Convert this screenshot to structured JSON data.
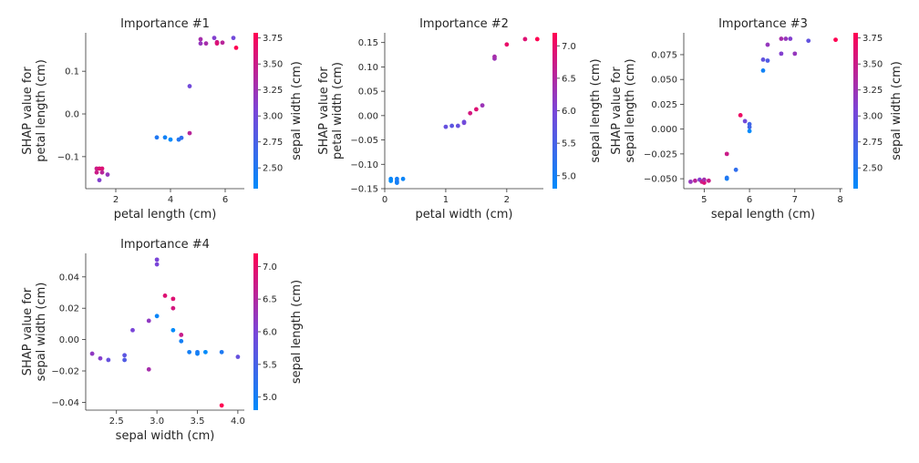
{
  "chart_data": [
    {
      "type": "scatter",
      "title": "Importance #1",
      "xlabel": "petal length (cm)",
      "ylabel": [
        "SHAP value for",
        "petal length (cm)"
      ],
      "xlim": [
        0.9,
        6.7
      ],
      "ylim": [
        -0.175,
        0.19
      ],
      "xticks": [
        2,
        4,
        6
      ],
      "xtick_labels": [
        "2",
        "4",
        "6"
      ],
      "yticks": [
        -0.1,
        0.0,
        0.1
      ],
      "ytick_labels": [
        "−0.1",
        "0.0",
        "0.1"
      ],
      "colorbar": {
        "label": "sepal width (cm)",
        "range": [
          2.3,
          3.8
        ],
        "ticks": [
          2.5,
          2.75,
          3.0,
          3.25,
          3.5,
          3.75
        ],
        "tick_labels": [
          "2.50",
          "2.75",
          "3.00",
          "3.25",
          "3.50",
          "3.75"
        ]
      },
      "points": [
        {
          "x": 1.3,
          "y": -0.128,
          "c": 3.5
        },
        {
          "x": 1.4,
          "y": -0.128,
          "c": 3.6
        },
        {
          "x": 1.5,
          "y": -0.128,
          "c": 3.6
        },
        {
          "x": 1.3,
          "y": -0.137,
          "c": 3.5
        },
        {
          "x": 1.5,
          "y": -0.137,
          "c": 3.4
        },
        {
          "x": 1.7,
          "y": -0.142,
          "c": 3.2
        },
        {
          "x": 1.4,
          "y": -0.155,
          "c": 3.1
        },
        {
          "x": 3.5,
          "y": -0.055,
          "c": 2.5
        },
        {
          "x": 3.8,
          "y": -0.055,
          "c": 2.4
        },
        {
          "x": 4.0,
          "y": -0.06,
          "c": 2.3
        },
        {
          "x": 4.3,
          "y": -0.06,
          "c": 2.5
        },
        {
          "x": 4.4,
          "y": -0.056,
          "c": 2.6
        },
        {
          "x": 4.7,
          "y": -0.045,
          "c": 3.4
        },
        {
          "x": 4.7,
          "y": 0.065,
          "c": 3.0
        },
        {
          "x": 5.1,
          "y": 0.175,
          "c": 3.3
        },
        {
          "x": 5.1,
          "y": 0.165,
          "c": 3.2
        },
        {
          "x": 5.3,
          "y": 0.165,
          "c": 3.3
        },
        {
          "x": 5.6,
          "y": 0.178,
          "c": 3.1
        },
        {
          "x": 5.7,
          "y": 0.168,
          "c": 3.5
        },
        {
          "x": 5.7,
          "y": 0.165,
          "c": 3.6
        },
        {
          "x": 5.9,
          "y": 0.167,
          "c": 3.4
        },
        {
          "x": 6.3,
          "y": 0.178,
          "c": 3.0
        },
        {
          "x": 6.4,
          "y": 0.155,
          "c": 3.8
        }
      ]
    },
    {
      "type": "scatter",
      "title": "Importance #2",
      "xlabel": "petal width (cm)",
      "ylabel": [
        "SHAP value for",
        "petal width (cm)"
      ],
      "xlim": [
        0.0,
        2.6
      ],
      "ylim": [
        -0.15,
        0.17
      ],
      "xticks": [
        0,
        1,
        2
      ],
      "xtick_labels": [
        "0",
        "1",
        "2"
      ],
      "yticks": [
        -0.15,
        -0.1,
        -0.05,
        0.0,
        0.05,
        0.1,
        0.15
      ],
      "ytick_labels": [
        "−0.15",
        "−0.10",
        "−0.05",
        "0.00",
        "0.05",
        "0.10",
        "0.15"
      ],
      "colorbar": {
        "label": "sepal length (cm)",
        "range": [
          4.8,
          7.2
        ],
        "ticks": [
          5.0,
          5.5,
          6.0,
          6.5,
          7.0
        ],
        "tick_labels": [
          "5.0",
          "5.5",
          "6.0",
          "6.5",
          "7.0"
        ]
      },
      "points": [
        {
          "x": 0.1,
          "y": -0.13,
          "c": 4.9
        },
        {
          "x": 0.1,
          "y": -0.134,
          "c": 4.8
        },
        {
          "x": 0.2,
          "y": -0.13,
          "c": 5.0
        },
        {
          "x": 0.2,
          "y": -0.135,
          "c": 5.1
        },
        {
          "x": 0.2,
          "y": -0.138,
          "c": 5.0
        },
        {
          "x": 0.3,
          "y": -0.13,
          "c": 4.9
        },
        {
          "x": 1.0,
          "y": -0.023,
          "c": 5.8
        },
        {
          "x": 1.1,
          "y": -0.021,
          "c": 5.7
        },
        {
          "x": 1.2,
          "y": -0.021,
          "c": 5.8
        },
        {
          "x": 1.3,
          "y": -0.015,
          "c": 6.0
        },
        {
          "x": 1.3,
          "y": -0.013,
          "c": 5.9
        },
        {
          "x": 1.4,
          "y": 0.005,
          "c": 6.8
        },
        {
          "x": 1.5,
          "y": 0.013,
          "c": 6.9
        },
        {
          "x": 1.6,
          "y": 0.021,
          "c": 6.3
        },
        {
          "x": 1.8,
          "y": 0.117,
          "c": 6.3
        },
        {
          "x": 1.8,
          "y": 0.121,
          "c": 6.4
        },
        {
          "x": 2.0,
          "y": 0.146,
          "c": 7.0
        },
        {
          "x": 2.3,
          "y": 0.157,
          "c": 6.9
        },
        {
          "x": 2.5,
          "y": 0.157,
          "c": 7.2
        }
      ]
    },
    {
      "type": "scatter",
      "title": "Importance #3",
      "xlabel": "sepal length (cm)",
      "ylabel": [
        "SHAP value for",
        "sepal length (cm)"
      ],
      "xlim": [
        4.55,
        8.05
      ],
      "ylim": [
        -0.06,
        0.097
      ],
      "xticks": [
        5,
        6,
        7,
        8
      ],
      "xtick_labels": [
        "5",
        "6",
        "7",
        "8"
      ],
      "yticks": [
        -0.05,
        -0.025,
        0.0,
        0.025,
        0.05,
        0.075
      ],
      "ytick_labels": [
        "−0.050",
        "−0.025",
        "0.000",
        "0.025",
        "0.050",
        "0.075"
      ],
      "colorbar": {
        "label": "sepal width (cm)",
        "range": [
          2.3,
          3.8
        ],
        "ticks": [
          2.5,
          2.75,
          3.0,
          3.25,
          3.5,
          3.75
        ],
        "tick_labels": [
          "2.50",
          "2.75",
          "3.00",
          "3.25",
          "3.50",
          "3.75"
        ]
      },
      "points": [
        {
          "x": 4.7,
          "y": -0.053,
          "c": 3.2
        },
        {
          "x": 4.8,
          "y": -0.052,
          "c": 3.4
        },
        {
          "x": 4.9,
          "y": -0.051,
          "c": 3.1
        },
        {
          "x": 4.95,
          "y": -0.053,
          "c": 3.5
        },
        {
          "x": 5.0,
          "y": -0.054,
          "c": 3.6
        },
        {
          "x": 5.0,
          "y": -0.051,
          "c": 3.3
        },
        {
          "x": 5.1,
          "y": -0.052,
          "c": 3.5
        },
        {
          "x": 5.5,
          "y": -0.05,
          "c": 2.4
        },
        {
          "x": 5.5,
          "y": -0.049,
          "c": 2.5
        },
        {
          "x": 5.5,
          "y": -0.025,
          "c": 3.5
        },
        {
          "x": 5.7,
          "y": -0.041,
          "c": 2.6
        },
        {
          "x": 5.8,
          "y": 0.014,
          "c": 3.7
        },
        {
          "x": 5.9,
          "y": 0.008,
          "c": 3.0
        },
        {
          "x": 6.0,
          "y": 0.005,
          "c": 2.7
        },
        {
          "x": 6.0,
          "y": 0.002,
          "c": 2.7
        },
        {
          "x": 6.0,
          "y": -0.002,
          "c": 2.3
        },
        {
          "x": 6.3,
          "y": 0.07,
          "c": 2.9
        },
        {
          "x": 6.3,
          "y": 0.059,
          "c": 2.4
        },
        {
          "x": 6.4,
          "y": 0.085,
          "c": 3.2
        },
        {
          "x": 6.4,
          "y": 0.069,
          "c": 2.8
        },
        {
          "x": 6.7,
          "y": 0.091,
          "c": 3.3
        },
        {
          "x": 6.7,
          "y": 0.076,
          "c": 3.1
        },
        {
          "x": 6.8,
          "y": 0.091,
          "c": 3.2
        },
        {
          "x": 6.9,
          "y": 0.091,
          "c": 3.1
        },
        {
          "x": 7.0,
          "y": 0.076,
          "c": 3.2
        },
        {
          "x": 7.3,
          "y": 0.089,
          "c": 2.9
        },
        {
          "x": 7.9,
          "y": 0.09,
          "c": 3.8
        }
      ]
    },
    {
      "type": "scatter",
      "title": "Importance #4",
      "xlabel": "sepal width (cm)",
      "ylabel": [
        "SHAP value for",
        "sepal width (cm)"
      ],
      "xlim": [
        2.12,
        4.08
      ],
      "ylim": [
        -0.045,
        0.055
      ],
      "xticks": [
        2.5,
        3.0,
        3.5,
        4.0
      ],
      "xtick_labels": [
        "2.5",
        "3.0",
        "3.5",
        "4.0"
      ],
      "yticks": [
        -0.04,
        -0.02,
        0.0,
        0.02,
        0.04
      ],
      "ytick_labels": [
        "−0.04",
        "−0.02",
        "0.00",
        "0.02",
        "0.04"
      ],
      "colorbar": {
        "label": "sepal length (cm)",
        "range": [
          4.8,
          7.2
        ],
        "ticks": [
          5.0,
          5.5,
          6.0,
          6.5,
          7.0
        ],
        "tick_labels": [
          "5.0",
          "5.5",
          "6.0",
          "6.5",
          "7.0"
        ]
      },
      "points": [
        {
          "x": 2.2,
          "y": -0.009,
          "c": 6.2
        },
        {
          "x": 2.3,
          "y": -0.012,
          "c": 6.1
        },
        {
          "x": 2.4,
          "y": -0.013,
          "c": 5.8
        },
        {
          "x": 2.6,
          "y": -0.01,
          "c": 5.7
        },
        {
          "x": 2.6,
          "y": -0.013,
          "c": 5.6
        },
        {
          "x": 2.7,
          "y": 0.006,
          "c": 6.0
        },
        {
          "x": 2.9,
          "y": 0.012,
          "c": 6.2
        },
        {
          "x": 2.9,
          "y": -0.019,
          "c": 6.4
        },
        {
          "x": 3.0,
          "y": 0.051,
          "c": 6.0
        },
        {
          "x": 3.0,
          "y": 0.048,
          "c": 6.0
        },
        {
          "x": 3.0,
          "y": 0.015,
          "c": 4.9
        },
        {
          "x": 3.1,
          "y": 0.028,
          "c": 6.9
        },
        {
          "x": 3.2,
          "y": 0.026,
          "c": 6.9
        },
        {
          "x": 3.2,
          "y": 0.02,
          "c": 6.8
        },
        {
          "x": 3.2,
          "y": 0.006,
          "c": 4.7
        },
        {
          "x": 3.3,
          "y": 0.003,
          "c": 6.7
        },
        {
          "x": 3.3,
          "y": -0.001,
          "c": 5.0
        },
        {
          "x": 3.4,
          "y": -0.008,
          "c": 5.0
        },
        {
          "x": 3.5,
          "y": -0.008,
          "c": 5.1
        },
        {
          "x": 3.5,
          "y": -0.009,
          "c": 5.0
        },
        {
          "x": 3.6,
          "y": -0.008,
          "c": 4.6
        },
        {
          "x": 3.8,
          "y": -0.008,
          "c": 5.1
        },
        {
          "x": 3.8,
          "y": -0.042,
          "c": 7.2
        },
        {
          "x": 4.0,
          "y": -0.011,
          "c": 5.8
        }
      ]
    }
  ]
}
